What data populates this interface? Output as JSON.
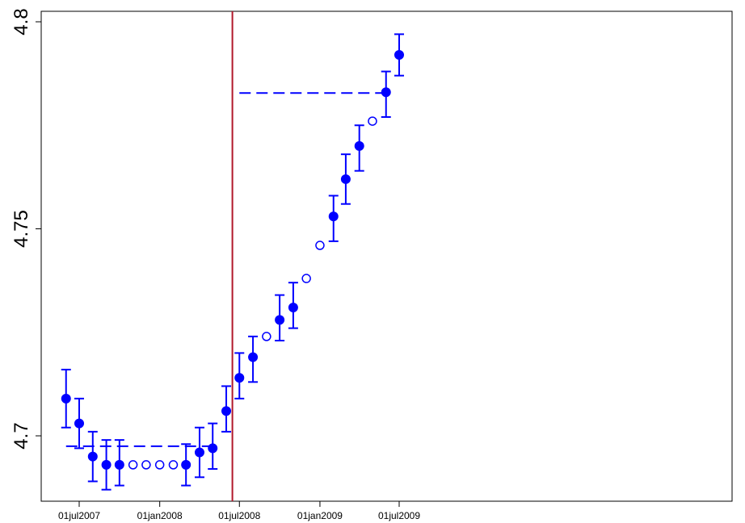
{
  "chart_data": {
    "type": "scatter",
    "title": "",
    "xlabel": "",
    "ylabel": "",
    "xlim": [
      "2007-06-01",
      "2009-07-01"
    ],
    "ylim": [
      4.685,
      4.802
    ],
    "x_ticks": [
      {
        "date": "2007-07-01",
        "label": "01jul2007"
      },
      {
        "date": "2008-01-01",
        "label": "01jan2008"
      },
      {
        "date": "2008-07-01",
        "label": "01jul2008"
      },
      {
        "date": "2009-01-01",
        "label": "01jan2009"
      },
      {
        "date": "2009-07-01",
        "label": "01jul2009"
      }
    ],
    "y_ticks": [
      {
        "value": 4.7,
        "label": "4.7"
      },
      {
        "value": 4.75,
        "label": "4.75"
      },
      {
        "value": 4.8,
        "label": "4.8"
      }
    ],
    "grid": false,
    "vertical_line": {
      "date": "2008-06-15",
      "color": "#b2182b"
    },
    "color": "#0000ff",
    "estimates": [
      {
        "date": "2007-06-01",
        "value": 4.709,
        "lo": 4.702,
        "hi": 4.716
      },
      {
        "date": "2007-07-01",
        "value": 4.703,
        "lo": 4.697,
        "hi": 4.709
      },
      {
        "date": "2007-08-01",
        "value": 4.695,
        "lo": 4.689,
        "hi": 4.701
      },
      {
        "date": "2007-09-01",
        "value": 4.693,
        "lo": 4.687,
        "hi": 4.699
      },
      {
        "date": "2007-10-01",
        "value": 4.693,
        "lo": 4.688,
        "hi": 4.699
      },
      {
        "date": "2008-03-01",
        "value": 4.693,
        "lo": 4.688,
        "hi": 4.698
      },
      {
        "date": "2008-04-01",
        "value": 4.696,
        "lo": 4.69,
        "hi": 4.702
      },
      {
        "date": "2008-05-01",
        "value": 4.697,
        "lo": 4.692,
        "hi": 4.703
      },
      {
        "date": "2008-06-01",
        "value": 4.706,
        "lo": 4.701,
        "hi": 4.712
      },
      {
        "date": "2008-07-01",
        "value": 4.714,
        "lo": 4.709,
        "hi": 4.72
      },
      {
        "date": "2008-08-01",
        "value": 4.719,
        "lo": 4.713,
        "hi": 4.724
      },
      {
        "date": "2008-10-01",
        "value": 4.728,
        "lo": 4.723,
        "hi": 4.734
      },
      {
        "date": "2008-11-01",
        "value": 4.731,
        "lo": 4.726,
        "hi": 4.737
      },
      {
        "date": "2009-02-01",
        "value": 4.753,
        "lo": 4.747,
        "hi": 4.758
      },
      {
        "date": "2009-03-01",
        "value": 4.762,
        "lo": 4.756,
        "hi": 4.768
      },
      {
        "date": "2009-04-01",
        "value": 4.77,
        "lo": 4.764,
        "hi": 4.775
      },
      {
        "date": "2009-06-01",
        "value": 4.783,
        "lo": 4.777,
        "hi": 4.788
      },
      {
        "date": "2009-07-01",
        "value": 4.792,
        "lo": 4.787,
        "hi": 4.797
      }
    ],
    "interpolated": [
      {
        "date": "2007-11-01",
        "value": 4.693
      },
      {
        "date": "2007-12-01",
        "value": 4.693
      },
      {
        "date": "2008-01-01",
        "value": 4.693
      },
      {
        "date": "2008-02-01",
        "value": 4.693
      },
      {
        "date": "2008-09-01",
        "value": 4.724
      },
      {
        "date": "2008-12-01",
        "value": 4.738
      },
      {
        "date": "2009-01-01",
        "value": 4.746
      },
      {
        "date": "2009-05-01",
        "value": 4.776
      }
    ],
    "reference_lines": [
      {
        "from": "2007-06-01",
        "to": "2008-05-01",
        "value": 4.6975
      },
      {
        "from": "2008-07-01",
        "to": "2009-06-01",
        "value": 4.7828
      }
    ]
  }
}
